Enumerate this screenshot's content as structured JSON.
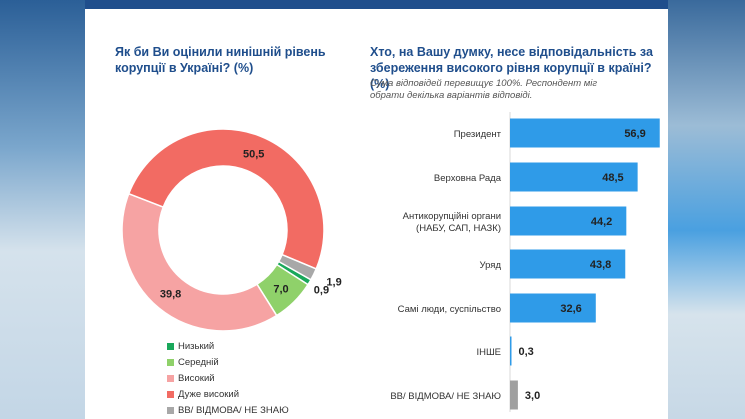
{
  "left_chart": {
    "title": "Як би Ви оцінили нинішній рівень корупції в Україні? (%)"
  },
  "right_chart": {
    "title": "Хто, на Вашу думку, несе відповідальність за збереження високого рівня корупції в країні? (%)",
    "note": "Сума відповідей перевищує 100%. Респондент міг обрати декілька варіантів відповіді."
  },
  "chart_data": [
    {
      "type": "pie",
      "variant": "donut",
      "title": "Як би Ви оцінили нинішній рівень корупції в Україні? (%)",
      "labels": [
        "Низький",
        "Середній",
        "Високий",
        "Дуже високий",
        "ВВ/ ВІДМОВА/ НЕ ЗНАЮ"
      ],
      "values": [
        0.9,
        7.0,
        39.8,
        50.5,
        1.9
      ],
      "value_labels": [
        "0,9",
        "7,0",
        "39,8",
        "50,5",
        "1,9"
      ],
      "colors": [
        "#1aa85b",
        "#8fd16a",
        "#f6a3a3",
        "#f26b63",
        "#a8a8a8"
      ],
      "legend_position": "bottom-left"
    },
    {
      "type": "bar",
      "orientation": "horizontal",
      "title": "Хто, на Вашу думку, несе відповідальність за збереження високого рівня корупції в країні? (%)",
      "categories": [
        "Президент",
        "Верховна Рада",
        "Антикорупційні органи (НАБУ, САП, НАЗК)",
        "Уряд",
        "Самі люди, суспільство",
        "ІНШЕ",
        "ВВ/ ВІДМОВА/ НЕ ЗНАЮ"
      ],
      "values": [
        56.9,
        48.5,
        44.2,
        43.8,
        32.6,
        0.3,
        3.0
      ],
      "value_labels": [
        "56,9",
        "48,5",
        "44,2",
        "43,8",
        "32,6",
        "0,3",
        "3,0"
      ],
      "colors": [
        "#2f9be8",
        "#2f9be8",
        "#2f9be8",
        "#2f9be8",
        "#2f9be8",
        "#2f9be8",
        "#a0a0a0"
      ],
      "xlim": [
        0,
        57
      ],
      "grid": false
    }
  ]
}
